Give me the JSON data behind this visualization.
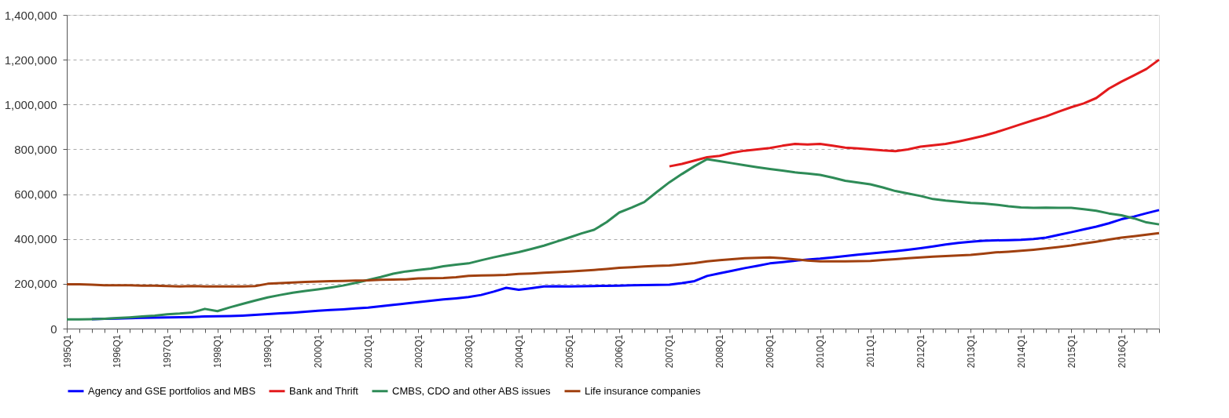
{
  "chart_data": {
    "type": "line",
    "categories": [
      "1995Q1",
      null,
      null,
      null,
      "1996Q1",
      null,
      null,
      null,
      "1997Q1",
      null,
      null,
      null,
      "1998Q1",
      null,
      null,
      null,
      "1999Q1",
      null,
      null,
      null,
      "2000Q1",
      null,
      null,
      null,
      "2001Q1",
      null,
      null,
      null,
      "2002Q1",
      null,
      null,
      null,
      "2003Q1",
      null,
      null,
      null,
      "2004Q1",
      null,
      null,
      null,
      "2005Q1",
      null,
      null,
      null,
      "2006Q1",
      null,
      null,
      null,
      "2007Q1",
      null,
      null,
      null,
      "2008Q1",
      null,
      null,
      null,
      "2009Q1",
      null,
      null,
      null,
      "2010Q1",
      null,
      null,
      null,
      "2011Q1",
      null,
      null,
      null,
      "2012Q1",
      null,
      null,
      null,
      "2013Q1",
      null,
      null,
      null,
      "2014Q1",
      null,
      null,
      null,
      "2015Q1",
      null,
      null,
      null,
      "2016Q1",
      null,
      null,
      null
    ],
    "series": [
      {
        "name": "Agency and GSE portfolios and MBS",
        "color": "#0000ff",
        "values": [
          null,
          null,
          42000,
          44000,
          45000,
          46000,
          48000,
          49000,
          50000,
          51000,
          52000,
          54000,
          55000,
          56000,
          58000,
          61000,
          65000,
          68000,
          71000,
          75000,
          80000,
          83000,
          86000,
          90000,
          94000,
          100000,
          106000,
          112000,
          118000,
          124000,
          130000,
          135000,
          141000,
          150000,
          165000,
          182000,
          173000,
          180000,
          188000,
          189000,
          188000,
          189000,
          190000,
          191000,
          192000,
          193000,
          194000,
          195000,
          196000,
          203000,
          212000,
          235000,
          247000,
          258000,
          270000,
          280000,
          291000,
          297000,
          303000,
          308000,
          312000,
          318000,
          324000,
          330000,
          335000,
          340000,
          346000,
          352000,
          359000,
          367000,
          375000,
          382000,
          388000,
          392000,
          394000,
          395000,
          396000,
          400000,
          406000,
          418000,
          430000,
          443000,
          455000,
          470000,
          488000,
          500000,
          515000,
          529000
        ]
      },
      {
        "name": "Bank and Thrift",
        "color": "#e31a1c",
        "values": [
          null,
          null,
          null,
          null,
          null,
          null,
          null,
          null,
          null,
          null,
          null,
          null,
          null,
          null,
          null,
          null,
          null,
          null,
          null,
          null,
          null,
          null,
          null,
          null,
          null,
          null,
          null,
          null,
          null,
          null,
          null,
          null,
          null,
          null,
          null,
          null,
          null,
          null,
          null,
          null,
          null,
          null,
          null,
          null,
          null,
          null,
          null,
          null,
          724000,
          735000,
          750000,
          765000,
          771000,
          785000,
          794000,
          800000,
          806000,
          816000,
          824000,
          822000,
          824000,
          816000,
          808000,
          804000,
          800000,
          795000,
          792000,
          800000,
          812000,
          818000,
          824000,
          835000,
          847000,
          860000,
          876000,
          894000,
          912000,
          930000,
          947000,
          968000,
          988000,
          1005000,
          1029000,
          1071000,
          1102000,
          1130000,
          1159000,
          1200000
        ]
      },
      {
        "name": "CMBS, CDO and other ABS issues",
        "color": "#2e8b57",
        "values": [
          41000,
          41000,
          42000,
          44000,
          47000,
          50000,
          54000,
          58000,
          64000,
          67000,
          72000,
          88000,
          78000,
          95000,
          110000,
          125000,
          139000,
          150000,
          160000,
          168000,
          175000,
          183000,
          192000,
          204000,
          217000,
          230000,
          245000,
          255000,
          262000,
          268000,
          278000,
          285000,
          291000,
          305000,
          318000,
          330000,
          341000,
          355000,
          370000,
          388000,
          406000,
          425000,
          441000,
          475000,
          518000,
          540000,
          565000,
          610000,
          653000,
          690000,
          725000,
          756000,
          747000,
          738000,
          729000,
          720000,
          712000,
          705000,
          697000,
          692000,
          686000,
          674000,
          660000,
          652000,
          644000,
          630000,
          614000,
          603000,
          592000,
          578000,
          571000,
          566000,
          561000,
          558000,
          553000,
          546000,
          541000,
          539000,
          540000,
          539000,
          539000,
          533000,
          526000,
          514000,
          506000,
          492000,
          474000,
          465000
        ]
      },
      {
        "name": "Life insurance companies",
        "color": "#a0400f",
        "values": [
          198000,
          198000,
          196000,
          193000,
          193000,
          193000,
          192000,
          192000,
          190000,
          188000,
          190000,
          188000,
          188000,
          188000,
          188000,
          190000,
          200000,
          203000,
          206000,
          208000,
          210000,
          212000,
          213000,
          214000,
          215000,
          218000,
          219000,
          220000,
          224000,
          225000,
          226000,
          229000,
          235000,
          237000,
          238000,
          240000,
          244000,
          246000,
          249000,
          252000,
          255000,
          258000,
          262000,
          266000,
          271000,
          274000,
          277000,
          280000,
          282000,
          287000,
          292000,
          300000,
          305000,
          310000,
          314000,
          316000,
          318000,
          314000,
          309000,
          304000,
          300000,
          300000,
          300000,
          301000,
          302000,
          306000,
          310000,
          314000,
          318000,
          321000,
          324000,
          326000,
          329000,
          334000,
          340000,
          343000,
          347000,
          352000,
          358000,
          364000,
          371000,
          380000,
          388000,
          397000,
          406000,
          412000,
          419000,
          426000
        ]
      }
    ],
    "ylim": [
      0,
      1400000
    ],
    "yticks": [
      0,
      {
        "value": 200000,
        "label": "200,000"
      },
      {
        "value": 400000,
        "label": "400,000"
      },
      {
        "value": 600000,
        "label": "600,000"
      },
      {
        "value": 800000,
        "label": "800,000"
      },
      {
        "value": 1000000,
        "label": "1,000,000"
      },
      {
        "value": 1200000,
        "label": "1,200,000"
      },
      {
        "value": 1400000,
        "label": "1,400,000"
      }
    ],
    "grid": "y",
    "legend": "bottom",
    "marker": "none",
    "line_style": "solid"
  }
}
